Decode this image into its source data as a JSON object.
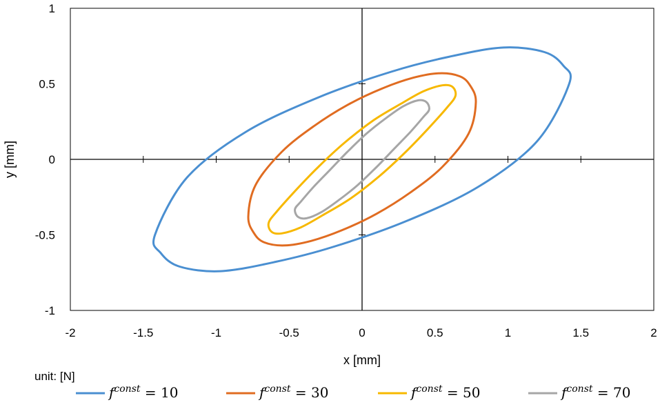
{
  "chart_data": {
    "type": "line",
    "xlabel": "x [mm]",
    "ylabel": "y [mm]",
    "xlim": [
      -2,
      2
    ],
    "ylim": [
      -1,
      1
    ],
    "x_ticks": [
      "-2",
      "-1.5",
      "-1",
      "-0.5",
      "0",
      "0.5",
      "1",
      "1.5",
      "2"
    ],
    "y_ticks": [
      "-1",
      "-0.5",
      "0",
      "0.5",
      "1"
    ],
    "grid": false,
    "legend_placement": "bottom",
    "unit_note": "unit: [N]",
    "series": [
      {
        "label": "f",
        "superscript": "const",
        "value_text": "= 10",
        "color": "#4a8fd1",
        "x": [
          1.42,
          1.38,
          1.25,
          0.97,
          0.6,
          0.2,
          -0.3,
          -0.8,
          -1.2,
          -1.42,
          -1.38,
          -1.25,
          -0.97,
          -0.6,
          -0.2,
          0.3,
          0.8,
          1.2,
          1.42
        ],
        "y": [
          0.5,
          0.62,
          0.71,
          0.74,
          0.68,
          0.58,
          0.41,
          0.18,
          -0.12,
          -0.5,
          -0.62,
          -0.71,
          -0.74,
          -0.68,
          -0.58,
          -0.41,
          -0.18,
          0.12,
          0.5
        ]
      },
      {
        "label": "f",
        "superscript": "const",
        "value_text": "= 30",
        "color": "#e06c21",
        "x": [
          0.78,
          0.74,
          0.67,
          0.53,
          0.35,
          0.14,
          -0.1,
          -0.33,
          -0.55,
          -0.73,
          -0.78,
          -0.74,
          -0.67,
          -0.53,
          -0.35,
          -0.14,
          0.1,
          0.33,
          0.55,
          0.73,
          0.78
        ],
        "y": [
          0.38,
          0.49,
          0.55,
          0.57,
          0.54,
          0.47,
          0.36,
          0.22,
          0.05,
          -0.17,
          -0.38,
          -0.49,
          -0.55,
          -0.57,
          -0.54,
          -0.47,
          -0.36,
          -0.22,
          -0.05,
          0.17,
          0.38
        ]
      },
      {
        "label": "f",
        "superscript": "const",
        "value_text": "= 50",
        "color": "#f7b800",
        "x": [
          0.64,
          0.62,
          0.55,
          0.42,
          0.27,
          0.08,
          -0.12,
          -0.3,
          -0.45,
          -0.58,
          -0.64,
          -0.62,
          -0.55,
          -0.42,
          -0.27,
          -0.08,
          0.12,
          0.3,
          0.45,
          0.58,
          0.64
        ],
        "y": [
          0.42,
          0.48,
          0.49,
          0.45,
          0.37,
          0.26,
          0.11,
          -0.05,
          -0.2,
          -0.34,
          -0.42,
          -0.48,
          -0.49,
          -0.45,
          -0.37,
          -0.26,
          -0.11,
          0.05,
          0.2,
          0.34,
          0.42
        ]
      },
      {
        "label": "f",
        "superscript": "const",
        "value_text": "= 70",
        "color": "#a6a6a6",
        "x": [
          0.46,
          0.44,
          0.38,
          0.28,
          0.16,
          0.03,
          -0.1,
          -0.22,
          -0.33,
          -0.42,
          -0.46,
          -0.44,
          -0.38,
          -0.28,
          -0.16,
          -0.03,
          0.1,
          0.22,
          0.33,
          0.42,
          0.46
        ],
        "y": [
          0.33,
          0.38,
          0.39,
          0.35,
          0.27,
          0.17,
          0.05,
          -0.07,
          -0.18,
          -0.28,
          -0.33,
          -0.38,
          -0.39,
          -0.35,
          -0.27,
          -0.17,
          -0.05,
          0.07,
          0.18,
          0.28,
          0.33
        ]
      }
    ]
  }
}
